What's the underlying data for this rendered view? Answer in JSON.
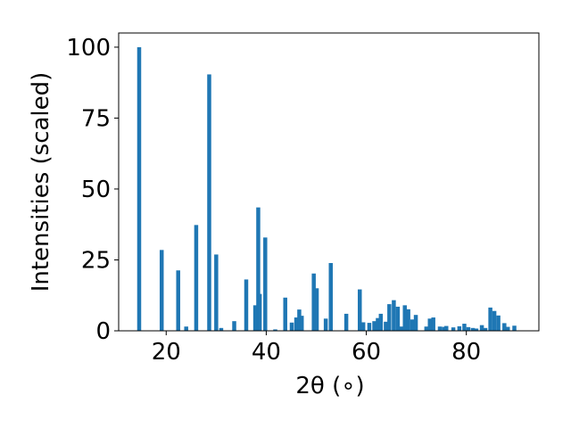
{
  "chart_data": {
    "type": "bar",
    "xlabel": "2θ (∘)",
    "ylabel": "Intensities (scaled)",
    "xlim": [
      10.5,
      94.5
    ],
    "ylim": [
      0,
      105
    ],
    "xticks": [
      20,
      40,
      60,
      80
    ],
    "yticks": [
      0,
      25,
      50,
      75,
      100
    ],
    "grid": false,
    "bar_color": "#1f77b4",
    "bar_width": 0.8,
    "x": [
      14.6,
      19.1,
      22.4,
      24.0,
      26.0,
      28.6,
      30.0,
      31.0,
      33.6,
      36.0,
      37.8,
      38.4,
      38.7,
      39.8,
      41.8,
      43.8,
      45.1,
      46.0,
      46.6,
      47.1,
      49.5,
      50.1,
      51.9,
      52.9,
      56.0,
      58.7,
      59.4,
      60.6,
      61.6,
      62.3,
      62.9,
      63.9,
      64.6,
      65.5,
      66.3,
      67.0,
      67.7,
      68.4,
      69.2,
      69.9,
      72.0,
      72.7,
      73.4,
      74.7,
      75.5,
      76.0,
      77.4,
      78.6,
      79.6,
      80.4,
      81.3,
      82.0,
      83.1,
      83.8,
      84.8,
      85.6,
      86.4,
      87.6,
      88.3,
      89.6
    ],
    "values": [
      100,
      28.5,
      21.3,
      1.5,
      37.3,
      90.4,
      26.9,
      1.0,
      3.4,
      18.1,
      9.0,
      43.5,
      13.0,
      32.9,
      0.5,
      11.7,
      2.9,
      4.7,
      7.5,
      5.3,
      20.2,
      15.0,
      4.3,
      23.9,
      6.0,
      14.6,
      3.0,
      2.8,
      3.4,
      4.5,
      6.0,
      3.2,
      9.4,
      10.8,
      8.5,
      1.5,
      9.0,
      7.6,
      4.0,
      5.6,
      1.5,
      4.3,
      4.7,
      1.5,
      1.4,
      1.7,
      1.2,
      1.6,
      2.5,
      1.3,
      1.0,
      0.8,
      2.0,
      1.0,
      8.2,
      7.0,
      5.4,
      2.7,
      1.4,
      1.8
    ]
  }
}
